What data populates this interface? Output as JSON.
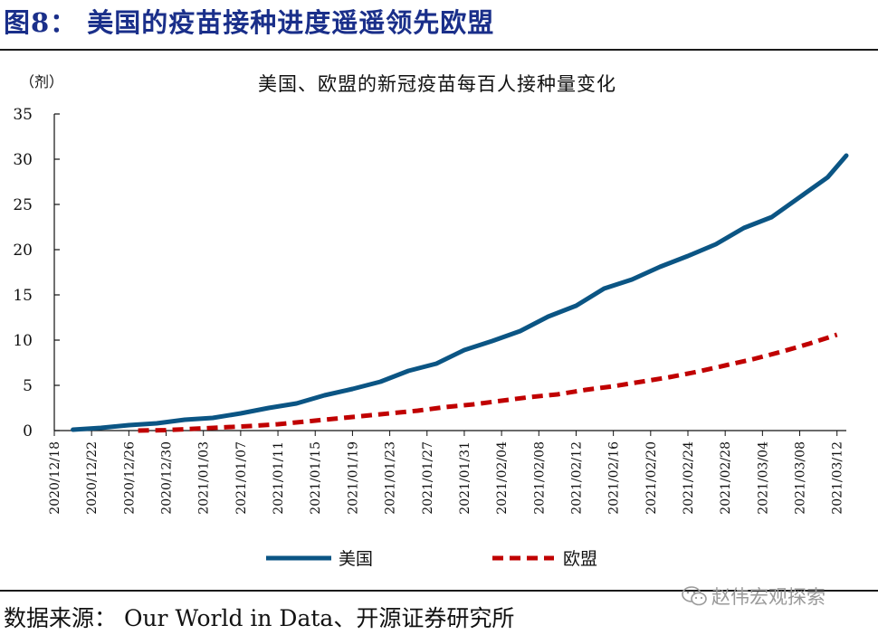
{
  "figure_title": "图8：  美国的疫苗接种进度遥遥领先欧盟",
  "source_note": "数据来源：  Our World in Data、开源证券研究所",
  "watermark": {
    "text": "赵伟宏观探索",
    "icon": "wechat-icon"
  },
  "colors": {
    "us": "#0b5584",
    "eu": "#c00000",
    "title": "#1a2f8a"
  },
  "chart_data": {
    "type": "line",
    "title": "美国、欧盟的新冠疫苗每百人接种量变化",
    "ylabel": "（剂）",
    "xlabel": "",
    "ylim": [
      0,
      35
    ],
    "yticks": [
      0,
      5,
      10,
      15,
      20,
      25,
      30,
      35
    ],
    "x_range": [
      "2020-12-18",
      "2021-03-13"
    ],
    "xtick_labels": [
      "2020/12/18",
      "2020/12/22",
      "2020/12/26",
      "2020/12/30",
      "2021/01/03",
      "2021/01/07",
      "2021/01/11",
      "2021/01/15",
      "2021/01/19",
      "2021/01/23",
      "2021/01/27",
      "2021/01/31",
      "2021/02/04",
      "2021/02/08",
      "2021/02/12",
      "2021/02/16",
      "2021/02/20",
      "2021/02/24",
      "2021/02/28",
      "2021/03/04",
      "2021/03/08",
      "2021/03/12"
    ],
    "legend_position": "bottom-center",
    "series": [
      {
        "name": "美国",
        "style": "solid",
        "color": "#0b5584",
        "x": [
          "2020-12-20",
          "2020-12-23",
          "2020-12-26",
          "2020-12-29",
          "2021-01-01",
          "2021-01-04",
          "2021-01-07",
          "2021-01-10",
          "2021-01-13",
          "2021-01-16",
          "2021-01-19",
          "2021-01-22",
          "2021-01-25",
          "2021-01-28",
          "2021-01-31",
          "2021-02-03",
          "2021-02-06",
          "2021-02-09",
          "2021-02-12",
          "2021-02-15",
          "2021-02-18",
          "2021-02-21",
          "2021-02-24",
          "2021-02-27",
          "2021-03-02",
          "2021-03-05",
          "2021-03-08",
          "2021-03-11",
          "2021-03-13"
        ],
        "values": [
          0.1,
          0.3,
          0.6,
          0.8,
          1.2,
          1.4,
          1.9,
          2.5,
          3.0,
          3.9,
          4.6,
          5.4,
          6.6,
          7.4,
          8.9,
          9.9,
          11.0,
          12.6,
          13.8,
          15.7,
          16.7,
          18.1,
          19.3,
          20.6,
          22.4,
          23.6,
          25.8,
          28.0,
          30.4
        ]
      },
      {
        "name": "欧盟",
        "style": "dashed",
        "color": "#c00000",
        "x": [
          "2020-12-27",
          "2020-12-30",
          "2021-01-02",
          "2021-01-05",
          "2021-01-08",
          "2021-01-11",
          "2021-01-14",
          "2021-01-17",
          "2021-01-20",
          "2021-01-23",
          "2021-01-26",
          "2021-01-29",
          "2021-02-01",
          "2021-02-04",
          "2021-02-07",
          "2021-02-10",
          "2021-02-13",
          "2021-02-16",
          "2021-02-19",
          "2021-02-22",
          "2021-02-25",
          "2021-02-28",
          "2021-03-03",
          "2021-03-06",
          "2021-03-09",
          "2021-03-12"
        ],
        "values": [
          0.0,
          0.05,
          0.2,
          0.35,
          0.5,
          0.7,
          1.0,
          1.3,
          1.6,
          1.9,
          2.2,
          2.6,
          2.9,
          3.3,
          3.7,
          4.0,
          4.5,
          4.9,
          5.4,
          5.9,
          6.5,
          7.2,
          7.9,
          8.7,
          9.6,
          10.6
        ]
      }
    ]
  }
}
